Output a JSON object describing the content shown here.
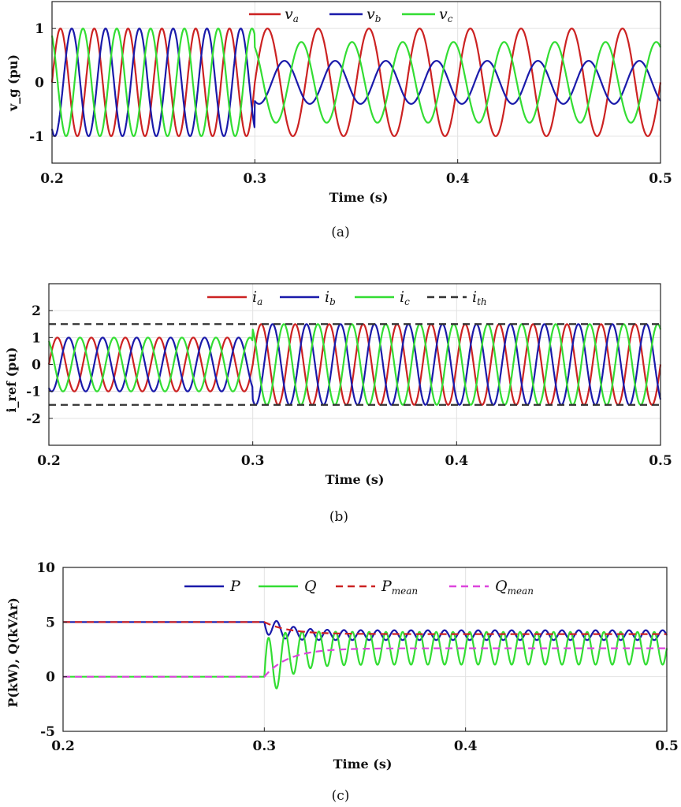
{
  "chart_data": [
    {
      "type": "line",
      "panel": "a",
      "caption": "(a)",
      "xlabel": "Time (s)",
      "ylabel": "v_g (pu)",
      "xlim": [
        0.2,
        0.5
      ],
      "ylim": [
        -1.5,
        1.5
      ],
      "xticks": [
        "0.2",
        "0.3",
        "0.4",
        "0.5"
      ],
      "yticks": [
        "-1",
        "0",
        "1"
      ],
      "ytick_values": [
        -1,
        0,
        1
      ],
      "grid": true,
      "legend_position": "top",
      "series": [
        {
          "name": "v_a",
          "legend_main": "v",
          "legend_sub": "a",
          "color": "#cc2222",
          "model": {
            "freq_before": 60,
            "amp_before": 1.0,
            "freq_after": 40,
            "amp_after": 1.0,
            "phase_deg": 0
          }
        },
        {
          "name": "v_b",
          "legend_main": "v",
          "legend_sub": "b",
          "color": "#1a1aaa",
          "model": {
            "freq_before": 60,
            "amp_before": 1.0,
            "freq_after": 40,
            "amp_after": 0.4,
            "phase_deg": -120
          }
        },
        {
          "name": "v_c",
          "legend_main": "v",
          "legend_sub": "c",
          "color": "#33dd33",
          "model": {
            "freq_before": 60,
            "amp_before": 1.0,
            "freq_after": 40,
            "amp_after": 0.75,
            "phase_deg": 120
          }
        }
      ],
      "event_time": 0.3
    },
    {
      "type": "line",
      "panel": "b",
      "caption": "(b)",
      "xlabel": "Time (s)",
      "ylabel": "i_ref (pu)",
      "xlim": [
        0.2,
        0.5
      ],
      "ylim": [
        -3,
        3
      ],
      "xticks": [
        "0.2",
        "0.3",
        "0.4",
        "0.5"
      ],
      "yticks": [
        "-2",
        "-1",
        "0",
        "1",
        "2"
      ],
      "ytick_values": [
        -2,
        -1,
        0,
        1,
        2
      ],
      "grid": true,
      "legend_position": "top",
      "series": [
        {
          "name": "i_a",
          "legend_main": "i",
          "legend_sub": "a",
          "color": "#cc2222",
          "model": {
            "freq_before": 60,
            "amp_before": 1.0,
            "freq_after": 60,
            "amp_after": 1.5,
            "phase_deg": 0
          }
        },
        {
          "name": "i_b",
          "legend_main": "i",
          "legend_sub": "b",
          "color": "#1a1aaa",
          "model": {
            "freq_before": 60,
            "amp_before": 1.0,
            "freq_after": 60,
            "amp_after": 1.5,
            "phase_deg": -120
          }
        },
        {
          "name": "i_c",
          "legend_main": "i",
          "legend_sub": "c",
          "color": "#33dd33",
          "model": {
            "freq_before": 60,
            "amp_before": 1.0,
            "freq_after": 60,
            "amp_after": 1.5,
            "phase_deg": 120
          }
        },
        {
          "name": "i_th",
          "legend_main": "i",
          "legend_sub": "th",
          "color": "#333333",
          "dashed": true,
          "threshold": [
            1.5,
            -1.5
          ]
        }
      ],
      "event_time": 0.3
    },
    {
      "type": "line",
      "panel": "c",
      "caption": "(c)",
      "xlabel": "Time (s)",
      "ylabel": "P(kW), Q(kVAr)",
      "xlim": [
        0.2,
        0.5
      ],
      "ylim": [
        -5,
        10
      ],
      "xticks": [
        "0.2",
        "0.3",
        "0.4",
        "0.5"
      ],
      "yticks": [
        "-5",
        "0",
        "5",
        "10"
      ],
      "ytick_values": [
        -5,
        0,
        5,
        10
      ],
      "grid": true,
      "legend_position": "top",
      "series": [
        {
          "name": "P",
          "legend_main": "P",
          "legend_sub": "",
          "color": "#1a1aaa",
          "model": {
            "before": 5.0,
            "after_mean": 3.8,
            "osc_amp": 0.45,
            "osc_freq": 120
          }
        },
        {
          "name": "Q",
          "legend_main": "Q",
          "legend_sub": "",
          "color": "#33dd33",
          "model": {
            "before": 0.0,
            "after_mean": 2.6,
            "osc_amp": 1.5,
            "osc_freq": 120
          }
        },
        {
          "name": "P_mean",
          "legend_main": "P",
          "legend_sub": "mean",
          "color": "#cc2222",
          "dashed": true,
          "model": {
            "before": 5.0,
            "after": 3.9
          }
        },
        {
          "name": "Q_mean",
          "legend_main": "Q",
          "legend_sub": "mean",
          "color": "#dd44dd",
          "dashed": true,
          "model": {
            "before": 0.0,
            "after": 2.6
          }
        }
      ],
      "event_time": 0.3
    }
  ]
}
